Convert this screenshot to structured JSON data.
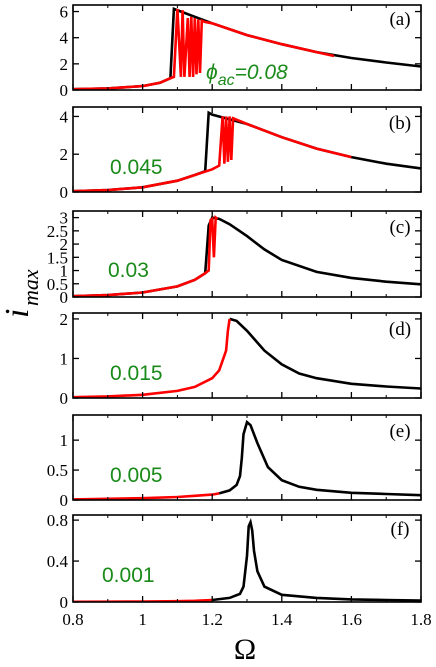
{
  "chart_data": {
    "type": "line",
    "xlabel": "Ω",
    "ylabel_main": "i",
    "ylabel_sub": "max",
    "xlim": [
      0.8,
      1.8
    ],
    "xticks": [
      "0.8",
      "1",
      "1.2",
      "1.4",
      "1.6",
      "1.8"
    ],
    "xtick_values": [
      0.8,
      1.0,
      1.2,
      1.4,
      1.6,
      1.8
    ],
    "colors": {
      "forward": "#ff0000",
      "backward": "#000000",
      "label": "#1a8a1a"
    },
    "panels": [
      {
        "tag": "(a)",
        "amp_prefix": "ϕ",
        "amp_sub": "ac",
        "amp_suffix": "=0.08",
        "ylim": [
          0,
          6.5
        ],
        "yticks": [
          "0",
          "2",
          "4",
          "6"
        ],
        "ytick_values": [
          0,
          2,
          4,
          6
        ],
        "black": [
          [
            0.8,
            0.06
          ],
          [
            0.9,
            0.12
          ],
          [
            1.0,
            0.3
          ],
          [
            1.05,
            0.55
          ],
          [
            1.08,
            0.9
          ],
          [
            1.09,
            6.2
          ],
          [
            1.15,
            5.6
          ],
          [
            1.2,
            5.1
          ],
          [
            1.3,
            4.2
          ],
          [
            1.4,
            3.5
          ],
          [
            1.5,
            2.9
          ],
          [
            1.6,
            2.45
          ],
          [
            1.7,
            2.1
          ],
          [
            1.8,
            1.8
          ]
        ],
        "red": [
          [
            0.8,
            0.06
          ],
          [
            0.9,
            0.12
          ],
          [
            1.0,
            0.3
          ],
          [
            1.05,
            0.55
          ],
          [
            1.08,
            0.9
          ],
          [
            1.09,
            1.0
          ],
          [
            1.1,
            6.2
          ],
          [
            1.11,
            1.0
          ],
          [
            1.115,
            6.1
          ],
          [
            1.12,
            1.0
          ],
          [
            1.13,
            5.5
          ],
          [
            1.135,
            1.0
          ],
          [
            1.14,
            5.6
          ],
          [
            1.145,
            1.0
          ],
          [
            1.15,
            5.5
          ],
          [
            1.155,
            1.2
          ],
          [
            1.16,
            5.4
          ],
          [
            1.165,
            1.3
          ],
          [
            1.17,
            5.3
          ],
          [
            1.18,
            5.2
          ],
          [
            1.2,
            5.1
          ],
          [
            1.3,
            4.2
          ],
          [
            1.4,
            3.5
          ],
          [
            1.5,
            2.9
          ],
          [
            1.55,
            2.6
          ]
        ]
      },
      {
        "tag": "(b)",
        "amp_text": "0.045",
        "ylim": [
          0,
          4.5
        ],
        "yticks": [
          "0",
          "2",
          "4"
        ],
        "ytick_values": [
          0,
          2,
          4
        ],
        "black": [
          [
            0.8,
            0.04
          ],
          [
            0.9,
            0.1
          ],
          [
            1.0,
            0.25
          ],
          [
            1.1,
            0.6
          ],
          [
            1.15,
            0.9
          ],
          [
            1.18,
            1.1
          ],
          [
            1.19,
            4.2
          ],
          [
            1.2,
            4.1
          ],
          [
            1.3,
            3.6
          ],
          [
            1.4,
            2.9
          ],
          [
            1.5,
            2.3
          ],
          [
            1.6,
            1.85
          ],
          [
            1.7,
            1.5
          ],
          [
            1.8,
            1.25
          ]
        ],
        "red": [
          [
            0.8,
            0.04
          ],
          [
            0.9,
            0.1
          ],
          [
            1.0,
            0.25
          ],
          [
            1.1,
            0.6
          ],
          [
            1.15,
            0.9
          ],
          [
            1.2,
            1.2
          ],
          [
            1.22,
            1.4
          ],
          [
            1.23,
            4.0
          ],
          [
            1.235,
            1.5
          ],
          [
            1.24,
            4.0
          ],
          [
            1.245,
            1.6
          ],
          [
            1.25,
            4.0
          ],
          [
            1.255,
            1.7
          ],
          [
            1.26,
            3.9
          ],
          [
            1.3,
            3.6
          ],
          [
            1.4,
            2.9
          ],
          [
            1.5,
            2.3
          ],
          [
            1.6,
            1.85
          ]
        ]
      },
      {
        "tag": "(c)",
        "amp_text": "0.03",
        "ylim": [
          0,
          3.25
        ],
        "yticks": [
          "0",
          "0.5",
          "1",
          "1.5",
          "2",
          "2.5",
          "3"
        ],
        "ytick_values": [
          0,
          0.5,
          1,
          1.5,
          2,
          2.5,
          3
        ],
        "black": [
          [
            0.8,
            0.03
          ],
          [
            0.9,
            0.07
          ],
          [
            1.0,
            0.17
          ],
          [
            1.1,
            0.4
          ],
          [
            1.15,
            0.65
          ],
          [
            1.18,
            0.9
          ],
          [
            1.19,
            2.7
          ],
          [
            1.2,
            3.0
          ],
          [
            1.22,
            2.95
          ],
          [
            1.25,
            2.75
          ],
          [
            1.3,
            2.3
          ],
          [
            1.35,
            1.8
          ],
          [
            1.4,
            1.4
          ],
          [
            1.5,
            0.95
          ],
          [
            1.6,
            0.72
          ],
          [
            1.7,
            0.58
          ],
          [
            1.8,
            0.48
          ]
        ],
        "red": [
          [
            0.8,
            0.03
          ],
          [
            0.9,
            0.07
          ],
          [
            1.0,
            0.17
          ],
          [
            1.1,
            0.4
          ],
          [
            1.15,
            0.65
          ],
          [
            1.18,
            0.9
          ],
          [
            1.19,
            1.0
          ],
          [
            1.195,
            2.9
          ],
          [
            1.2,
            2.95
          ],
          [
            1.205,
            1.5
          ],
          [
            1.21,
            3.0
          ],
          [
            1.215,
            2.95
          ]
        ]
      },
      {
        "tag": "(d)",
        "amp_text": "0.015",
        "ylim": [
          0,
          2.15
        ],
        "yticks": [
          "0",
          "1",
          "2"
        ],
        "ytick_values": [
          0,
          1,
          2
        ],
        "black": [
          [
            1.25,
            2.0
          ],
          [
            1.27,
            1.95
          ],
          [
            1.3,
            1.7
          ],
          [
            1.35,
            1.2
          ],
          [
            1.4,
            0.85
          ],
          [
            1.45,
            0.62
          ],
          [
            1.5,
            0.5
          ],
          [
            1.6,
            0.36
          ],
          [
            1.7,
            0.29
          ],
          [
            1.8,
            0.24
          ]
        ],
        "red": [
          [
            0.8,
            0.02
          ],
          [
            0.9,
            0.04
          ],
          [
            1.0,
            0.08
          ],
          [
            1.1,
            0.18
          ],
          [
            1.15,
            0.28
          ],
          [
            1.2,
            0.5
          ],
          [
            1.22,
            0.7
          ],
          [
            1.24,
            1.2
          ],
          [
            1.245,
            1.7
          ],
          [
            1.25,
            2.0
          ]
        ]
      },
      {
        "tag": "(e)",
        "amp_text": "0.005",
        "ylim": [
          0,
          1.42
        ],
        "yticks": [
          "0",
          "0.5",
          "1"
        ],
        "ytick_values": [
          0,
          0.5,
          1
        ],
        "black": [
          [
            1.22,
            0.11
          ],
          [
            1.25,
            0.16
          ],
          [
            1.27,
            0.25
          ],
          [
            1.28,
            0.4
          ],
          [
            1.285,
            0.7
          ],
          [
            1.29,
            1.1
          ],
          [
            1.3,
            1.3
          ],
          [
            1.31,
            1.25
          ],
          [
            1.33,
            0.95
          ],
          [
            1.36,
            0.55
          ],
          [
            1.4,
            0.33
          ],
          [
            1.45,
            0.22
          ],
          [
            1.5,
            0.17
          ],
          [
            1.6,
            0.12
          ],
          [
            1.7,
            0.1
          ],
          [
            1.8,
            0.08
          ]
        ],
        "red": [
          [
            0.8,
            0.01
          ],
          [
            0.9,
            0.02
          ],
          [
            1.0,
            0.03
          ],
          [
            1.1,
            0.05
          ],
          [
            1.15,
            0.07
          ],
          [
            1.2,
            0.09
          ],
          [
            1.22,
            0.11
          ]
        ]
      },
      {
        "tag": "(f)",
        "amp_text": "0.001",
        "ylim": [
          0,
          0.85
        ],
        "yticks": [
          "0",
          "0.4",
          "0.8"
        ],
        "ytick_values": [
          0,
          0.4,
          0.8
        ],
        "black": [
          [
            1.2,
            0.02
          ],
          [
            1.25,
            0.04
          ],
          [
            1.28,
            0.08
          ],
          [
            1.29,
            0.15
          ],
          [
            1.3,
            0.45
          ],
          [
            1.305,
            0.74
          ],
          [
            1.31,
            0.78
          ],
          [
            1.315,
            0.7
          ],
          [
            1.32,
            0.5
          ],
          [
            1.33,
            0.3
          ],
          [
            1.35,
            0.15
          ],
          [
            1.4,
            0.07
          ],
          [
            1.5,
            0.04
          ],
          [
            1.6,
            0.025
          ],
          [
            1.7,
            0.02
          ],
          [
            1.8,
            0.015
          ]
        ],
        "red": [
          [
            0.8,
            0.002
          ],
          [
            0.9,
            0.003
          ],
          [
            1.0,
            0.005
          ],
          [
            1.1,
            0.008
          ],
          [
            1.15,
            0.012
          ],
          [
            1.2,
            0.02
          ]
        ]
      }
    ]
  }
}
